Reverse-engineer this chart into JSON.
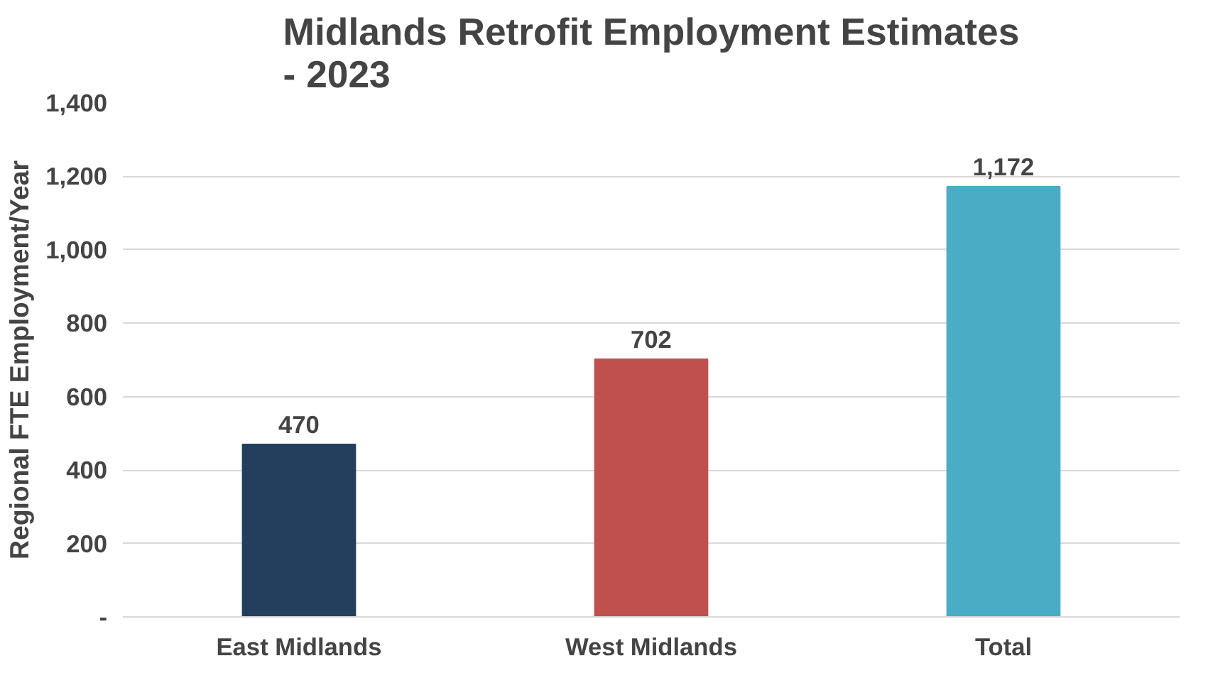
{
  "chart_data": {
    "type": "bar",
    "title": "Midlands Retrofit Employment Estimates\n- 2023",
    "ylabel": "Regional FTE Employment/Year",
    "categories": [
      "East Midlands",
      "West Midlands",
      "Total"
    ],
    "values": [
      470,
      702,
      1172
    ],
    "colors": [
      "#243f5e",
      "#c0504d",
      "#4bacc6"
    ],
    "value_labels": [
      "470",
      "702",
      "1,172"
    ],
    "ylim": [
      0,
      1400
    ],
    "yticks": [
      {
        "value": 0,
        "label": "-"
      },
      200,
      400,
      600,
      800,
      {
        "value": 1000,
        "label": "1,000"
      },
      {
        "value": 1200,
        "label": "1,200"
      },
      {
        "value": 1400,
        "label": "1,400"
      }
    ],
    "grid": "y"
  }
}
